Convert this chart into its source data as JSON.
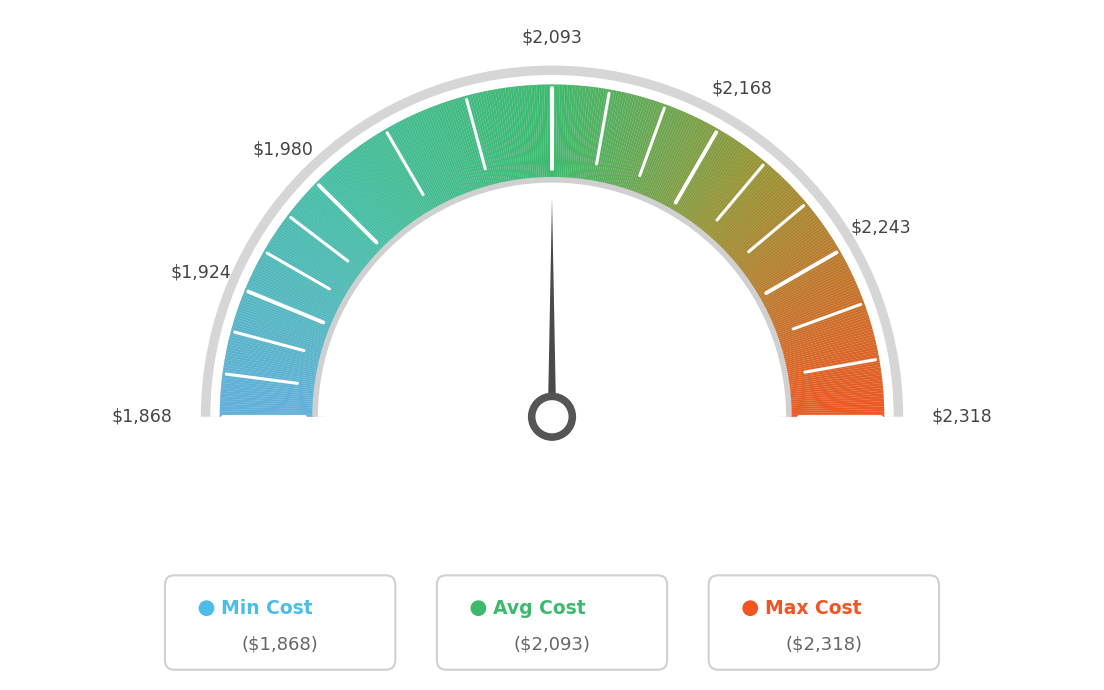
{
  "min_val": 1868,
  "avg_val": 2093,
  "max_val": 2318,
  "tick_labels": [
    "$1,868",
    "$1,924",
    "$1,980",
    "$2,093",
    "$2,168",
    "$2,243",
    "$2,318"
  ],
  "tick_values": [
    1868,
    1924,
    1980,
    2093,
    2168,
    2243,
    2318
  ],
  "legend": [
    {
      "label": "Min Cost",
      "value": "($1,868)",
      "color": "#4bbde8"
    },
    {
      "label": "Avg Cost",
      "value": "($2,093)",
      "color": "#3cb96b"
    },
    {
      "label": "Max Cost",
      "value": "($2,318)",
      "color": "#f05522"
    }
  ],
  "bg_color": "#ffffff",
  "color_stops": [
    [
      0.0,
      [
        0.38,
        0.69,
        0.87
      ]
    ],
    [
      0.25,
      [
        0.27,
        0.75,
        0.65
      ]
    ],
    [
      0.5,
      [
        0.24,
        0.73,
        0.43
      ]
    ],
    [
      0.72,
      [
        0.6,
        0.58,
        0.2
      ]
    ],
    [
      1.0,
      [
        0.94,
        0.34,
        0.13
      ]
    ]
  ]
}
